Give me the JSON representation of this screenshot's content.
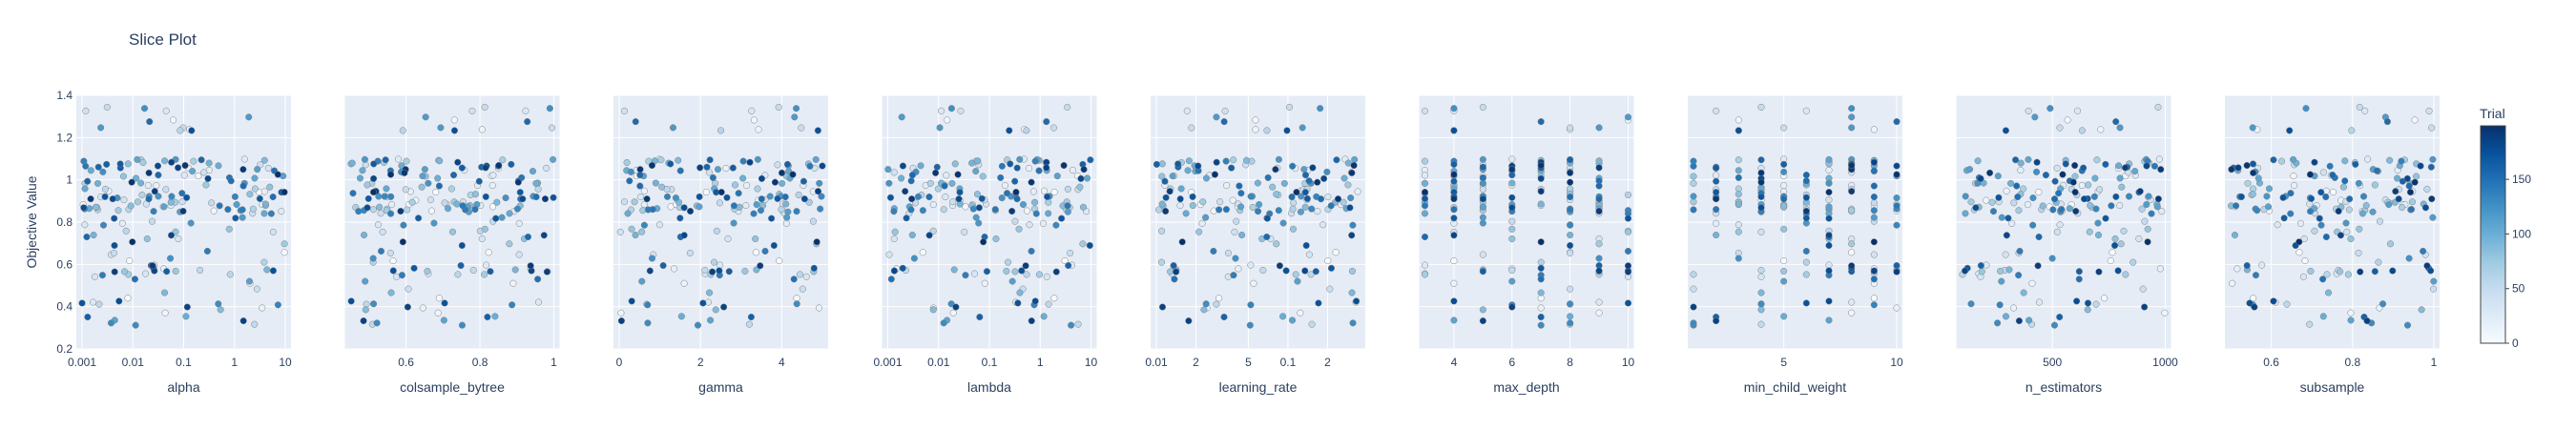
{
  "chart_data": {
    "type": "scatter",
    "title": "Slice Plot",
    "ylabel": "Objective Value",
    "ylim": [
      0.2,
      1.4
    ],
    "y_ticks": [
      "0.2",
      "0.4",
      "0.6",
      "0.8",
      "1",
      "1.2",
      "1.4"
    ],
    "colorbar": {
      "title": "Trial",
      "ticks": [
        "0",
        "50",
        "100",
        "150"
      ],
      "range": [
        0,
        199
      ],
      "colors": [
        "#f7fbff",
        "#deebf7",
        "#c6dbef",
        "#9ecae1",
        "#6baed6",
        "#4292c6",
        "#2171b5",
        "#08519c",
        "#08306b"
      ]
    },
    "panels": [
      {
        "xlabel": "alpha",
        "scale": "log",
        "range": [
          0.001,
          10
        ],
        "ticks": [
          0.001,
          0.01,
          0.1,
          1,
          10
        ],
        "tick_labels": [
          "0.001",
          "0.01",
          "0.1",
          "1",
          "10"
        ]
      },
      {
        "xlabel": "colsample_bytree",
        "scale": "linear",
        "range": [
          0.45,
          1.0
        ],
        "ticks": [
          0.6,
          0.8,
          1.0
        ],
        "tick_labels": [
          "0.6",
          "0.8",
          "1"
        ]
      },
      {
        "xlabel": "gamma",
        "scale": "linear",
        "range": [
          0,
          5
        ],
        "ticks": [
          0,
          2,
          4
        ],
        "tick_labels": [
          "0",
          "2",
          "4"
        ]
      },
      {
        "xlabel": "lambda",
        "scale": "log",
        "range": [
          0.001,
          10
        ],
        "ticks": [
          0.001,
          0.01,
          0.1,
          1,
          10
        ],
        "tick_labels": [
          "0.001",
          "0.01",
          "0.1",
          "1",
          "10"
        ]
      },
      {
        "xlabel": "learning_rate",
        "scale": "log",
        "range": [
          0.01,
          0.35
        ],
        "ticks": [
          0.01,
          0.02,
          0.05,
          0.1,
          0.2
        ],
        "tick_labels": [
          "0.01",
          "2",
          "5",
          "0.1",
          "2"
        ]
      },
      {
        "xlabel": "max_depth",
        "scale": "linear",
        "range": [
          3,
          10
        ],
        "ticks": [
          4,
          6,
          8,
          10
        ],
        "tick_labels": [
          "4",
          "6",
          "8",
          "10"
        ]
      },
      {
        "xlabel": "min_child_weight",
        "scale": "linear",
        "range": [
          1,
          10
        ],
        "ticks": [
          5,
          10
        ],
        "tick_labels": [
          "5",
          "10"
        ]
      },
      {
        "xlabel": "n_estimators",
        "scale": "linear",
        "range": [
          100,
          1000
        ],
        "ticks": [
          500,
          1000
        ],
        "tick_labels": [
          "500",
          "1000"
        ]
      },
      {
        "xlabel": "subsample",
        "scale": "linear",
        "range": [
          0.5,
          1.0
        ],
        "ticks": [
          0.6,
          0.8,
          1.0
        ],
        "tick_labels": [
          "0.6",
          "0.8",
          "1"
        ]
      }
    ],
    "n_trials": 200
  }
}
